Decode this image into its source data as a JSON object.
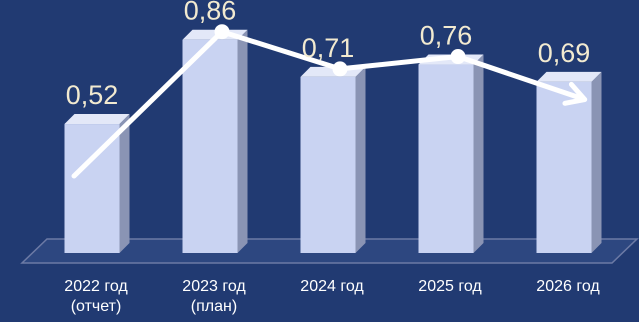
{
  "chart_data": {
    "type": "bar",
    "title": "",
    "xlabel": "",
    "ylabel": "",
    "categories": [
      [
        "2022 год",
        "(отчет)"
      ],
      [
        "2023 год",
        "(план)"
      ],
      [
        "2024 год"
      ],
      [
        "2025 год"
      ],
      [
        "2026 год"
      ]
    ],
    "values": [
      0.52,
      0.86,
      0.71,
      0.76,
      0.69
    ],
    "value_labels": [
      "0,52",
      "0,86",
      "0,71",
      "0,76",
      "0,69"
    ],
    "ylim": [
      0,
      1.0
    ],
    "grid": false,
    "legend": "none",
    "trend_line": true,
    "colors": {
      "background": "#213a72",
      "bar_front": "#c9d3f2",
      "bar_side": "#8a94b4",
      "bar_top": "#e3e8f8",
      "floor": "#2d4780",
      "floor_edge": "#6c7aa5",
      "trend": "#ffffff",
      "label": "#f2ead0",
      "tick": "#ffffff"
    }
  }
}
